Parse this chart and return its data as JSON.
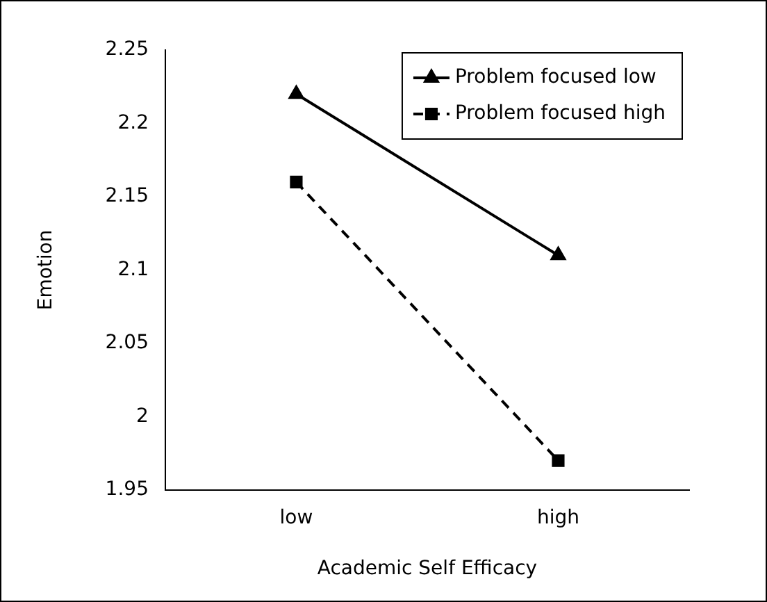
{
  "chart_data": {
    "type": "line",
    "xlabel": "Academic Self Efficacy",
    "ylabel": "Emotion",
    "categories": [
      "low",
      "high"
    ],
    "series": [
      {
        "name": "Problem focused low",
        "color": "#000000",
        "values": [
          2.22,
          2.11
        ],
        "marker": "triangle",
        "line_style": "solid"
      },
      {
        "name": "Problem focused high",
        "color": "#000000",
        "values": [
          2.16,
          1.97
        ],
        "marker": "square",
        "line_style": "dashed"
      }
    ],
    "ylim": [
      1.95,
      2.25
    ],
    "yticks": [
      1.95,
      2,
      2.05,
      2.1,
      2.15,
      2.2,
      2.25
    ],
    "grid": false,
    "legend": "top right"
  }
}
